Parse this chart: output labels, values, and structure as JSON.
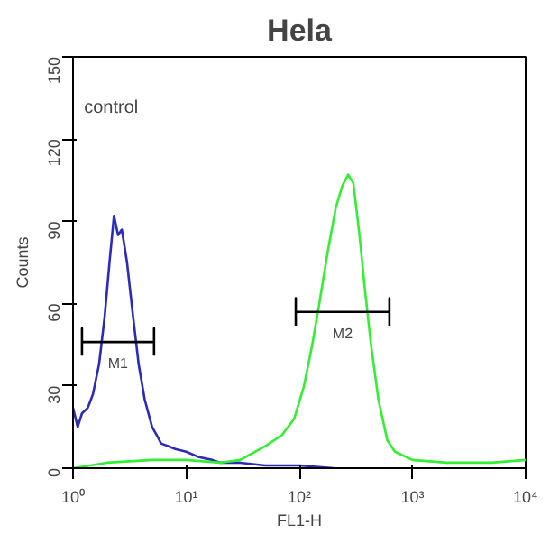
{
  "chart_data": {
    "type": "line",
    "title": "Hela",
    "xlabel": "FL1-H",
    "ylabel": "Counts",
    "log": "x",
    "grid": false,
    "legend": false,
    "marker": "none",
    "xlim": [
      1,
      10000
    ],
    "xticks": [
      {
        "value": 1,
        "label": "10⁰"
      },
      {
        "value": 10,
        "label": "10¹"
      },
      {
        "value": 100,
        "label": "10²"
      },
      {
        "value": 1000,
        "label": "10³"
      },
      {
        "value": 10000,
        "label": "10⁴"
      }
    ],
    "ylim": [
      0,
      150
    ],
    "yticks": [
      0,
      30,
      60,
      90,
      120,
      150
    ],
    "series": [
      {
        "color": "#2b2bb8",
        "x": [
          1.0,
          1.1,
          1.2,
          1.35,
          1.5,
          1.7,
          1.9,
          2.1,
          2.3,
          2.5,
          2.7,
          3.0,
          3.4,
          3.8,
          4.3,
          5,
          5.5,
          6,
          7,
          8,
          10,
          13,
          17,
          20,
          30,
          50,
          70,
          100,
          200
        ],
        "values": [
          22,
          15,
          20,
          22,
          27,
          38,
          55,
          75,
          92,
          85,
          87,
          75,
          55,
          38,
          25,
          15,
          12,
          9,
          8,
          7,
          6,
          4,
          3,
          2,
          2,
          1,
          1,
          1,
          0
        ]
      },
      {
        "color": "#33ee33",
        "x": [
          1,
          2,
          5,
          10,
          20,
          30,
          50,
          70,
          90,
          110,
          130,
          150,
          180,
          210,
          240,
          270,
          300,
          340,
          380,
          430,
          500,
          600,
          700,
          1000,
          2000,
          5000,
          10000
        ],
        "values": [
          0,
          2,
          3,
          3,
          2,
          3,
          8,
          12,
          18,
          30,
          45,
          60,
          80,
          95,
          103,
          107,
          104,
          85,
          65,
          45,
          25,
          10,
          6,
          3,
          2,
          2,
          3
        ]
      },
      {
        "name": "M1",
        "color": "#000000",
        "x": [
          1.2,
          1.2,
          1.2,
          5.2,
          5.2,
          5.2
        ],
        "values": [
          41,
          51,
          46,
          46,
          51,
          41
        ]
      },
      {
        "name": "M2",
        "color": "#000000",
        "x": [
          93,
          93,
          93,
          625,
          625,
          625
        ],
        "values": [
          52,
          62,
          57,
          57,
          62,
          52
        ]
      }
    ],
    "annotations": [
      "control"
    ]
  }
}
